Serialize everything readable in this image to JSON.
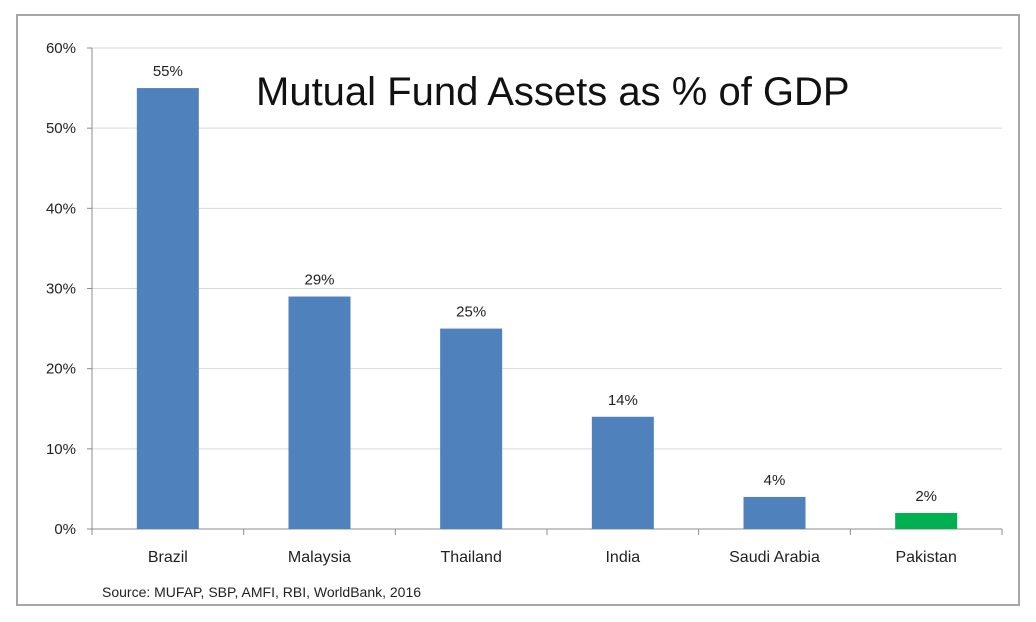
{
  "chart_data": {
    "type": "bar",
    "title": "Mutual Fund Assets as % of GDP",
    "categories": [
      "Brazil",
      "Malaysia",
      "Thailand",
      "India",
      "Saudi Arabia",
      "Pakistan"
    ],
    "values": [
      55,
      29,
      25,
      14,
      4,
      2
    ],
    "data_labels": [
      "55%",
      "29%",
      "25%",
      "14%",
      "4%",
      "2%"
    ],
    "bar_colors": [
      "#4f81bd",
      "#4f81bd",
      "#4f81bd",
      "#4f81bd",
      "#4f81bd",
      "#00b050"
    ],
    "ylim": [
      0,
      60
    ],
    "yticks": [
      0,
      10,
      20,
      30,
      40,
      50,
      60
    ],
    "ytick_labels": [
      "0%",
      "10%",
      "20%",
      "30%",
      "40%",
      "50%",
      "60%"
    ],
    "xlabel": "",
    "ylabel": "",
    "grid": true,
    "gridline_color": "#d9d9d9",
    "source": "Source: MUFAP, SBP, AMFI, RBI, WorldBank, 2016"
  }
}
